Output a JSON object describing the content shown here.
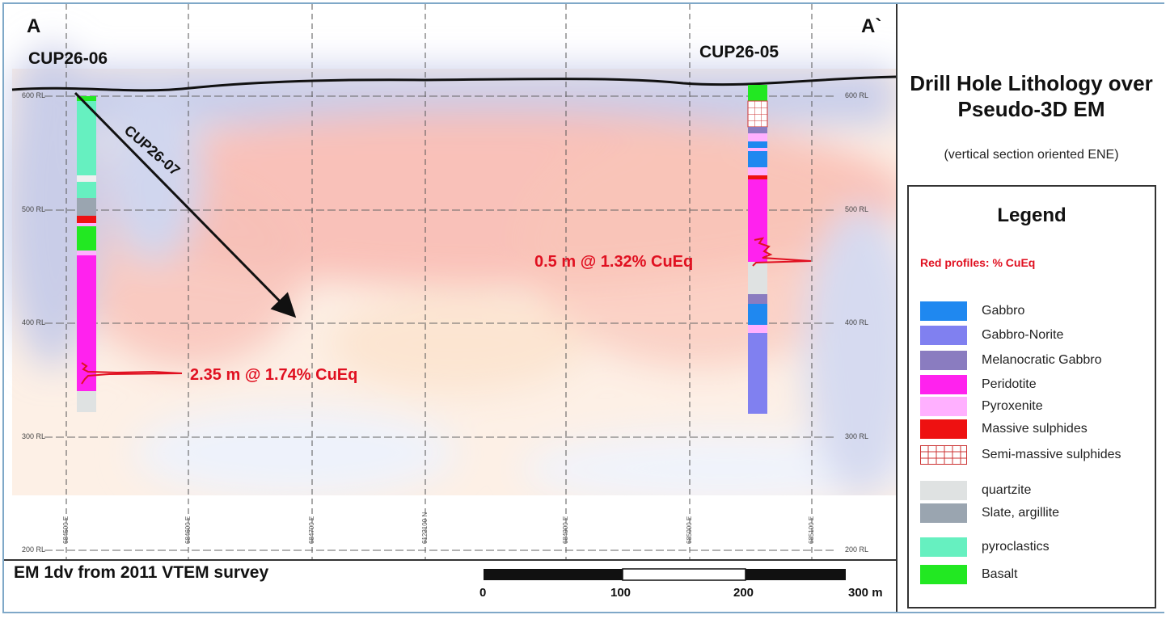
{
  "section_labels": {
    "start": "A",
    "end": "A`"
  },
  "holes": [
    {
      "name": "CUP26-06"
    },
    {
      "name": "CUP26-05"
    },
    {
      "name": "CUP26-07"
    }
  ],
  "intercepts": [
    {
      "text": "2.35 m @ 1.74% CuEq",
      "hole": "CUP26-06"
    },
    {
      "text": "0.5 m @ 1.32% CuEq",
      "hole": "CUP26-05"
    }
  ],
  "rl_labels": [
    "600 RL",
    "500 RL",
    "400 RL",
    "300 RL",
    "200 RL"
  ],
  "grid_coords": [
    "684500 E",
    "684600 E",
    "684700 E",
    "6122100 N",
    "684900 E",
    "685000 E",
    "685100 E"
  ],
  "caption": "EM 1dv from 2011 VTEM survey",
  "scale_bar": {
    "labels": [
      "0",
      "100",
      "200",
      "300 m"
    ]
  },
  "title": "Drill Hole Lithology over Pseudo-3D EM",
  "subtitle": "(vertical section oriented ENE)",
  "legend": {
    "title": "Legend",
    "note": "Red profiles: % CuEq",
    "items": [
      {
        "label": "Gabbro",
        "color": "#1f88f0"
      },
      {
        "label": "Gabbro-Norite",
        "color": "#8080f0"
      },
      {
        "label": "Melanocratic Gabbro",
        "color": "#8a7cc0"
      },
      {
        "label": "Peridotite",
        "color": "#ff22ee"
      },
      {
        "label": "Pyroxenite",
        "color": "#ffb0ff"
      },
      {
        "label": "Massive sulphides",
        "color": "#ee1111"
      },
      {
        "label": "Semi-massive sulphides",
        "color": "#ffffff",
        "pattern": "grid"
      },
      {
        "label": "quartzite",
        "color": "#dfe2e2"
      },
      {
        "label": "Slate, argillite",
        "color": "#9aa5b0"
      },
      {
        "label": "pyroclastics",
        "color": "#66f0c0"
      },
      {
        "label": "Basalt",
        "color": "#22e822"
      }
    ]
  },
  "colors": {
    "intercept_red": "#e01020",
    "topography": "#111111",
    "frame": "#7fa8c8"
  }
}
